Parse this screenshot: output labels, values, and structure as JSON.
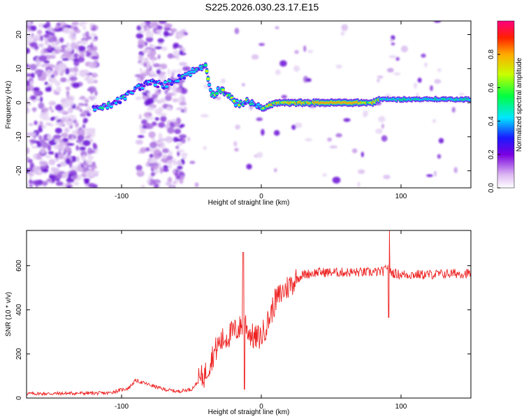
{
  "title": "S225.2026.030.23.17.E15",
  "chart_data": [
    {
      "type": "heatmap",
      "name": "spectrogram",
      "xlabel": "Height of straight line (km)",
      "ylabel": "Frequency (Hz)",
      "xlim": [
        -168,
        150
      ],
      "ylim": [
        -25,
        24
      ],
      "xticks": [
        -100,
        0,
        100
      ],
      "yticks": [
        -20,
        -10,
        0,
        10,
        20
      ],
      "ridge_x": [
        -120,
        -110,
        -100,
        -90,
        -80,
        -70,
        -60,
        -50,
        -40,
        -35,
        -30,
        -25,
        -20,
        -15,
        -10,
        -5,
        0,
        10,
        20,
        40,
        60,
        80,
        85,
        90,
        100,
        120,
        150
      ],
      "ridge_y": [
        -2,
        -1,
        1,
        4,
        6,
        5,
        7,
        9,
        11,
        2,
        4,
        3,
        0,
        0,
        0,
        0,
        -2,
        0,
        0,
        0,
        0,
        0,
        1,
        1,
        1,
        1,
        1
      ],
      "colorbar": {
        "label": "Normalized spectral amplitude",
        "ticks": [
          "0.0",
          "0.2",
          "0.4",
          "0.6",
          "0.8"
        ],
        "range": [
          0,
          1
        ]
      }
    },
    {
      "type": "line",
      "name": "snr",
      "xlabel": "Height of straight line (km)",
      "ylabel": "SNR (10 * v/v)",
      "xlim": [
        -168,
        150
      ],
      "ylim": [
        0,
        760
      ],
      "xticks": [
        -100,
        0,
        100
      ],
      "yticks": [
        0,
        200,
        400,
        600
      ],
      "color": "#ee2222",
      "series": [
        {
          "name": "SNR",
          "x": [
            -168,
            -150,
            -130,
            -110,
            -95,
            -90,
            -85,
            -80,
            -75,
            -70,
            -60,
            -50,
            -40,
            -35,
            -30,
            -20,
            -15,
            -12,
            -10,
            -5,
            0,
            5,
            10,
            15,
            20,
            25,
            30,
            40,
            60,
            80,
            88,
            90,
            92,
            95,
            100,
            120,
            140,
            150
          ],
          "y": [
            20,
            20,
            22,
            22,
            45,
            80,
            70,
            60,
            50,
            40,
            30,
            40,
            110,
            190,
            250,
            300,
            320,
            360,
            310,
            270,
            280,
            350,
            440,
            480,
            510,
            540,
            560,
            570,
            570,
            570,
            575,
            600,
            575,
            565,
            560,
            560,
            565,
            565
          ]
        }
      ]
    }
  ]
}
